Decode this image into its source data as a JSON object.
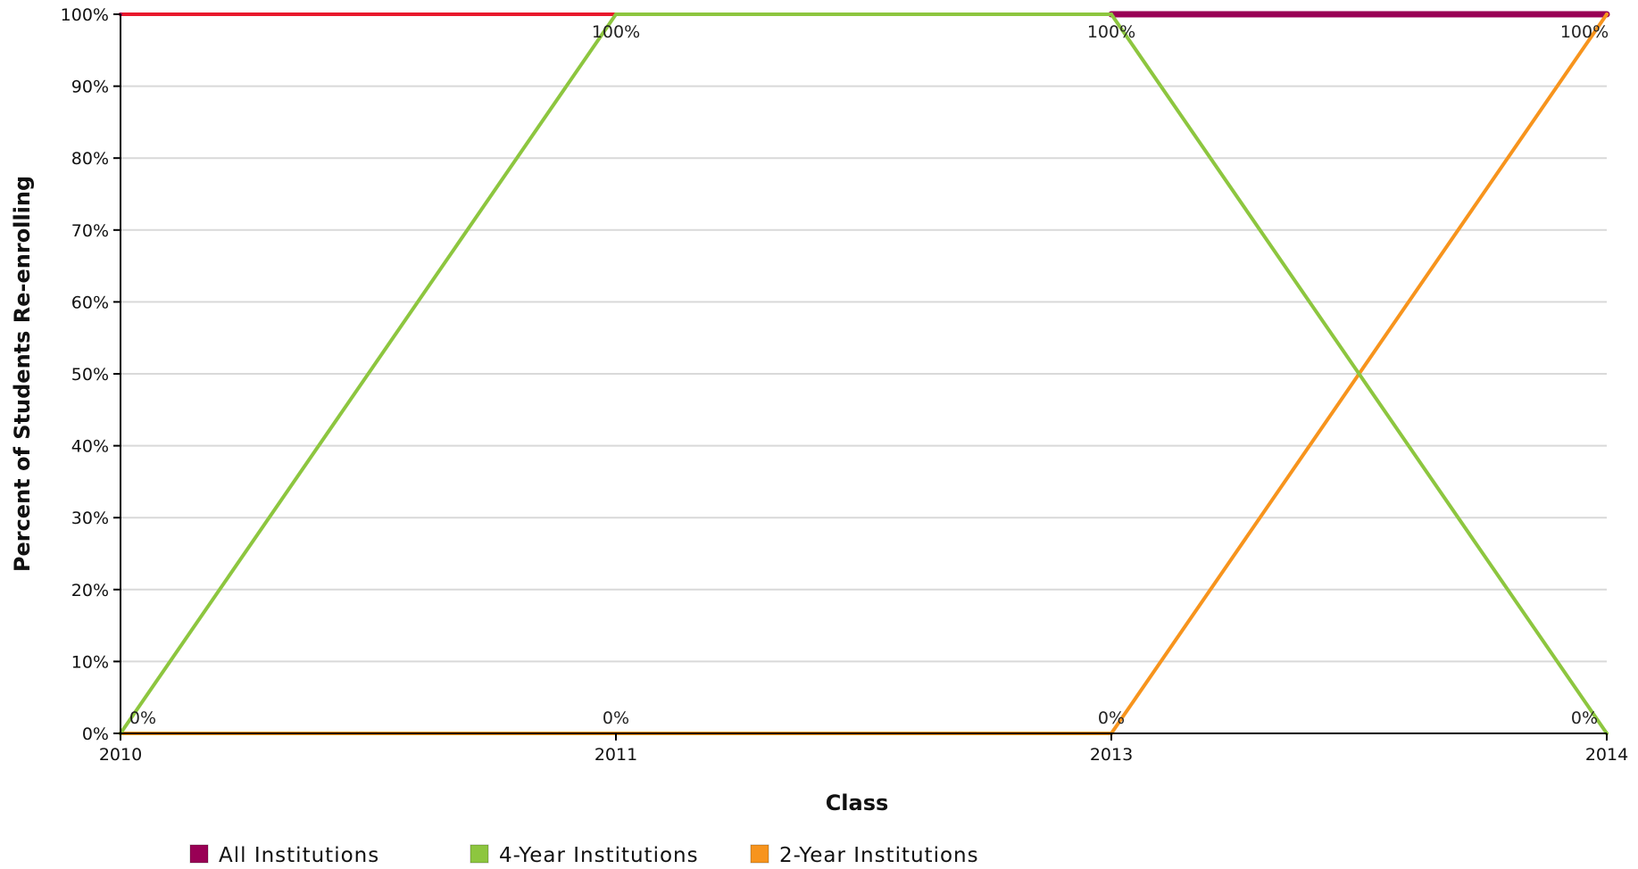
{
  "chart_data": {
    "type": "line",
    "xlabel": "Class",
    "ylabel": "Percent of Students Re-enrolling",
    "categories": [
      "2010",
      "2011",
      "2013",
      "2014"
    ],
    "y_ticks": [
      "0%",
      "10%",
      "20%",
      "30%",
      "40%",
      "50%",
      "60%",
      "70%",
      "80%",
      "90%",
      "100%"
    ],
    "ylim": [
      0,
      100
    ],
    "grid": true,
    "legend_position": "bottom",
    "series": [
      {
        "name": "All Institutions",
        "color": "#990055",
        "values": [
          100,
          100,
          100,
          100
        ],
        "line_colors": [
          "#e8192c",
          "#e8192c",
          "#990055"
        ],
        "labels": [
          "",
          "",
          "",
          ""
        ]
      },
      {
        "name": "4-Year Institutions",
        "color": "#8dc63f",
        "values": [
          0,
          100,
          100,
          0
        ],
        "labels": [
          "0%",
          "100%",
          "100%",
          "0%"
        ]
      },
      {
        "name": "2-Year Institutions",
        "color": "#f7941d",
        "values": [
          0,
          0,
          0,
          100
        ],
        "labels": [
          "",
          "0%",
          "0%",
          "100%"
        ]
      }
    ]
  }
}
